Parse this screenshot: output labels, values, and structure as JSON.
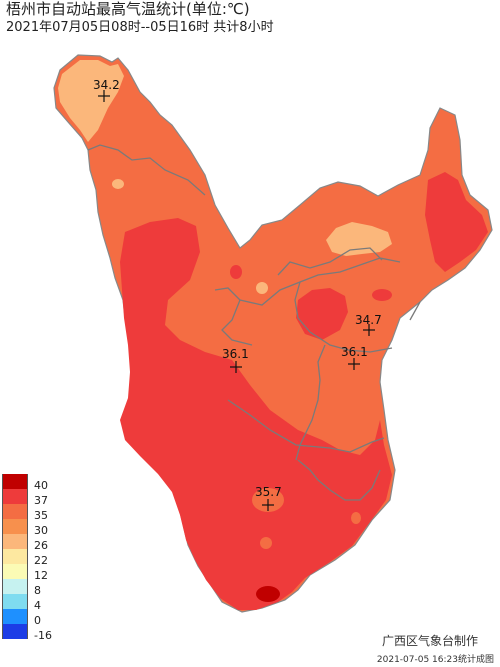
{
  "title": "梧州市自动站最高气温统计(单位:℃)",
  "subtitle": "2021年07月05日08时--05日16时  共计8小时",
  "producer": "广西区气象台制作",
  "timestamp": "2021-07-05 16:23统计成图",
  "stations": [
    {
      "id": "nw",
      "value": "34.2"
    },
    {
      "id": "ne",
      "value": "34.7"
    },
    {
      "id": "center-west",
      "value": "36.1"
    },
    {
      "id": "center-east",
      "value": "36.1"
    },
    {
      "id": "south",
      "value": "35.7"
    }
  ],
  "legend": [
    {
      "label": "40",
      "color": "#c00000"
    },
    {
      "label": "37",
      "color": "#ee3b3b"
    },
    {
      "label": "35",
      "color": "#f46d43"
    },
    {
      "label": "30",
      "color": "#f7904d"
    },
    {
      "label": "26",
      "color": "#fbb77b"
    },
    {
      "label": "22",
      "color": "#fde8a0"
    },
    {
      "label": "12",
      "color": "#fbfbb5"
    },
    {
      "label": "8",
      "color": "#c6f2f0"
    },
    {
      "label": "4",
      "color": "#7fdcf0"
    },
    {
      "label": "0",
      "color": "#1e90ff"
    },
    {
      "label": "-16",
      "color": "#1c3de6"
    }
  ],
  "colors": {
    "hot": "#ee3b3b",
    "warm": "#f46d43",
    "mild": "#fbb77b",
    "extreme": "#c00000",
    "border": "#777777"
  }
}
